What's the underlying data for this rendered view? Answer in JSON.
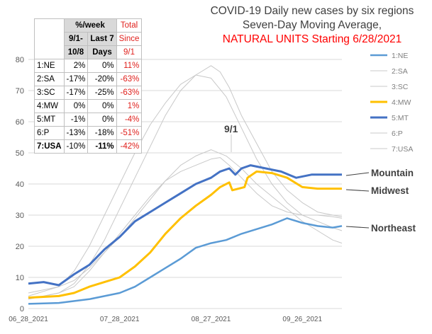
{
  "title": {
    "line1": "COVID-19 Daily new cases by six regions",
    "line2": "Seven-Day Moving Average,",
    "line3": "NATURAL UNITS Starting 6/28/2021"
  },
  "table": {
    "headers": {
      "group": "%/week",
      "col1a": "9/1-",
      "col1b": "10/8",
      "col2a": "Last 7",
      "col2b": "Days",
      "col3a": "Total",
      "col3b": "Since",
      "col3c": "9/1"
    },
    "rows": [
      {
        "region": "1:NE",
        "v1": "2%",
        "v2": "0%",
        "v3": "11%"
      },
      {
        "region": "2:SA",
        "v1": "-17%",
        "v2": "-20%",
        "v3": "-63%"
      },
      {
        "region": "3:SC",
        "v1": "-17%",
        "v2": "-25%",
        "v3": "-63%"
      },
      {
        "region": "4:MW",
        "v1": "0%",
        "v2": "0%",
        "v3": "1%"
      },
      {
        "region": "5:MT",
        "v1": "-1%",
        "v2": "0%",
        "v3": "-4%"
      },
      {
        "region": "6:P",
        "v1": "-13%",
        "v2": "-18%",
        "v3": "-51%"
      },
      {
        "region": "7:USA",
        "v1": "-10%",
        "v2": "-11%",
        "v3": "-42%"
      }
    ]
  },
  "annotations": {
    "marker": "9/1",
    "mountain": "Mountain",
    "midwest": "Midwest",
    "northeast": "Northeast"
  },
  "colors": {
    "ne": "#5b9bd5",
    "mw": "#ffc000",
    "mt": "#4472c4",
    "gray": "#c8c8c8",
    "axis_text": "#595959",
    "grid": "#d9d9d9"
  },
  "chart_data": {
    "type": "line",
    "x_tick_labels": [
      "06_28_2021",
      "07_28_2021",
      "08_27_2021",
      "09_26_2021"
    ],
    "x_tick_days": [
      0,
      30,
      60,
      90
    ],
    "x_days_total": 103,
    "y_ticks": [
      "0",
      "10",
      "20",
      "30",
      "40",
      "50",
      "60",
      "70",
      "80"
    ],
    "ylim": [
      0,
      80
    ],
    "legend_position": "right",
    "series": [
      {
        "name": "1:NE",
        "color": "#5b9bd5",
        "width": 2.5,
        "points": [
          [
            0,
            1.5
          ],
          [
            10,
            1.8
          ],
          [
            20,
            3
          ],
          [
            30,
            5
          ],
          [
            35,
            7
          ],
          [
            40,
            10
          ],
          [
            45,
            13
          ],
          [
            50,
            16
          ],
          [
            55,
            19.5
          ],
          [
            60,
            21
          ],
          [
            65,
            22
          ],
          [
            70,
            24
          ],
          [
            75,
            25.5
          ],
          [
            80,
            27
          ],
          [
            85,
            29
          ],
          [
            90,
            27.5
          ],
          [
            95,
            26.5
          ],
          [
            100,
            26
          ],
          [
            103,
            26.5
          ]
        ]
      },
      {
        "name": "2:SA",
        "color": "#c8c8c8",
        "width": 1,
        "points": [
          [
            0,
            3
          ],
          [
            10,
            5
          ],
          [
            15,
            8
          ],
          [
            20,
            14
          ],
          [
            25,
            22
          ],
          [
            30,
            32
          ],
          [
            35,
            42
          ],
          [
            40,
            52
          ],
          [
            45,
            62
          ],
          [
            50,
            70
          ],
          [
            55,
            75
          ],
          [
            60,
            78
          ],
          [
            63,
            76
          ],
          [
            66,
            71
          ],
          [
            70,
            62
          ],
          [
            75,
            53
          ],
          [
            80,
            44
          ],
          [
            85,
            38
          ],
          [
            90,
            34
          ],
          [
            95,
            31
          ],
          [
            100,
            30
          ],
          [
            103,
            29.5
          ]
        ]
      },
      {
        "name": "3:SC",
        "color": "#c8c8c8",
        "width": 1,
        "points": [
          [
            0,
            4
          ],
          [
            10,
            7
          ],
          [
            15,
            12
          ],
          [
            20,
            20
          ],
          [
            25,
            30
          ],
          [
            30,
            40
          ],
          [
            35,
            50
          ],
          [
            40,
            59
          ],
          [
            45,
            66
          ],
          [
            50,
            72
          ],
          [
            55,
            75
          ],
          [
            60,
            74
          ],
          [
            65,
            68
          ],
          [
            70,
            58
          ],
          [
            75,
            48
          ],
          [
            80,
            40
          ],
          [
            85,
            34
          ],
          [
            90,
            30
          ],
          [
            95,
            28
          ],
          [
            100,
            26
          ],
          [
            103,
            25
          ]
        ]
      },
      {
        "name": "4:MW",
        "color": "#ffc000",
        "width": 3,
        "points": [
          [
            0,
            3.5
          ],
          [
            10,
            4
          ],
          [
            15,
            5
          ],
          [
            20,
            7
          ],
          [
            25,
            8.5
          ],
          [
            30,
            10
          ],
          [
            35,
            13.5
          ],
          [
            40,
            18
          ],
          [
            45,
            24
          ],
          [
            50,
            29
          ],
          [
            55,
            33
          ],
          [
            60,
            36.5
          ],
          [
            63,
            39
          ],
          [
            66,
            40.5
          ],
          [
            67,
            38
          ],
          [
            71,
            39
          ],
          [
            72,
            42
          ],
          [
            75,
            44
          ],
          [
            80,
            43.5
          ],
          [
            85,
            42
          ],
          [
            90,
            39
          ],
          [
            95,
            38.5
          ],
          [
            100,
            38.5
          ],
          [
            103,
            38.5
          ]
        ]
      },
      {
        "name": "5:MT",
        "color": "#4472c4",
        "width": 3,
        "points": [
          [
            0,
            8
          ],
          [
            5,
            8.5
          ],
          [
            10,
            7.5
          ],
          [
            15,
            11
          ],
          [
            20,
            14
          ],
          [
            25,
            19
          ],
          [
            30,
            23
          ],
          [
            35,
            28
          ],
          [
            40,
            31
          ],
          [
            45,
            34
          ],
          [
            50,
            37
          ],
          [
            55,
            40
          ],
          [
            60,
            42
          ],
          [
            63,
            44
          ],
          [
            66,
            45
          ],
          [
            68,
            43
          ],
          [
            70,
            45
          ],
          [
            73,
            46
          ],
          [
            78,
            45
          ],
          [
            83,
            44
          ],
          [
            88,
            42
          ],
          [
            93,
            43
          ],
          [
            98,
            43
          ],
          [
            103,
            43
          ]
        ]
      },
      {
        "name": "6:P",
        "color": "#c8c8c8",
        "width": 1,
        "points": [
          [
            0,
            5
          ],
          [
            10,
            7
          ],
          [
            15,
            9
          ],
          [
            20,
            13
          ],
          [
            25,
            18
          ],
          [
            30,
            23
          ],
          [
            35,
            29
          ],
          [
            40,
            35
          ],
          [
            45,
            41
          ],
          [
            50,
            46
          ],
          [
            55,
            49
          ],
          [
            60,
            51
          ],
          [
            65,
            49
          ],
          [
            70,
            45
          ],
          [
            75,
            40
          ],
          [
            80,
            36
          ],
          [
            85,
            32
          ],
          [
            90,
            28
          ],
          [
            95,
            25
          ],
          [
            100,
            22
          ],
          [
            103,
            21
          ]
        ]
      },
      {
        "name": "7:USA",
        "color": "#c8c8c8",
        "width": 1,
        "points": [
          [
            0,
            3
          ],
          [
            10,
            5
          ],
          [
            15,
            7
          ],
          [
            20,
            12
          ],
          [
            25,
            18
          ],
          [
            30,
            24
          ],
          [
            35,
            30
          ],
          [
            40,
            36
          ],
          [
            45,
            41
          ],
          [
            50,
            44
          ],
          [
            55,
            46
          ],
          [
            60,
            48
          ],
          [
            63,
            48.5
          ],
          [
            66,
            46
          ],
          [
            70,
            42
          ],
          [
            75,
            37
          ],
          [
            80,
            33
          ],
          [
            85,
            31
          ],
          [
            90,
            30
          ],
          [
            95,
            30
          ],
          [
            100,
            29.5
          ],
          [
            103,
            29
          ]
        ]
      }
    ]
  }
}
